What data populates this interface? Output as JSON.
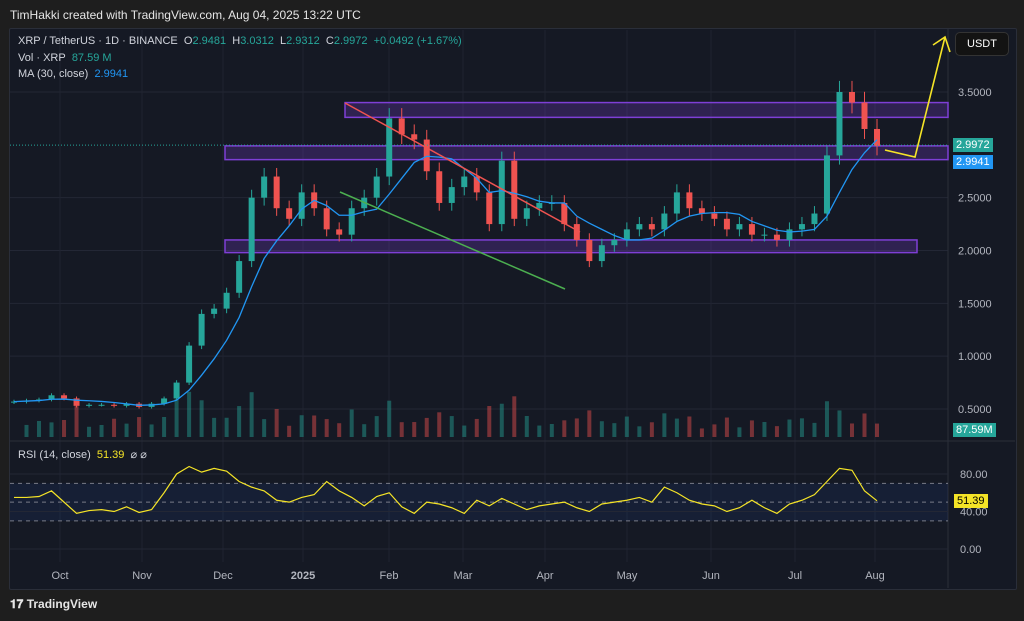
{
  "credit": "TimHakki created with TradingView.com, Aug 04, 2025 13:22 UTC",
  "legend": {
    "symbol": "XRP / TetherUS · 1D · BINANCE",
    "o_label": "O",
    "o": "2.9481",
    "h_label": "H",
    "h": "3.0312",
    "l_label": "L",
    "l": "2.9312",
    "c_label": "C",
    "c": "2.9972",
    "change": "+0.0492 (+1.67%)",
    "vol_label": "Vol · XRP",
    "vol": "87.59 M",
    "ma_label": "MA (30, close)",
    "ma": "2.9941",
    "rsi_label": "RSI (14, close)",
    "rsi": "51.39",
    "rsi_extra": "⌀ ⌀"
  },
  "currency": "USDT",
  "price_tags": {
    "close": "2.9972",
    "ma": "2.9941",
    "volume": "87.59M",
    "rsi": "51.39"
  },
  "footer": "TradingView",
  "colors": {
    "up": "#26a69a",
    "down": "#ef5350",
    "ma": "#2196f3",
    "rsi": "#f5e427",
    "box": "#7e3fd6",
    "resistance": "#ef5350",
    "support": "#4caf50",
    "arrow": "#f5e427"
  },
  "chart_data": {
    "type": "candlestick",
    "title": "XRP / TetherUS · 1D · BINANCE",
    "x_ticks": [
      "Oct",
      "Nov",
      "Dec",
      "2025",
      "Feb",
      "Mar",
      "Apr",
      "May",
      "Jun",
      "Jul",
      "Aug"
    ],
    "y_ticks": [
      "3.5000",
      "2.5000",
      "2.0000",
      "1.5000",
      "1.0000",
      "0.5000"
    ],
    "ylim": [
      0.42,
      3.95
    ],
    "rsi_ticks": [
      "80.00",
      "40.00",
      "0.00"
    ],
    "rsi_bands": [
      70,
      30
    ],
    "step_days": 5,
    "closes": [
      0.57,
      0.58,
      0.59,
      0.63,
      0.6,
      0.53,
      0.54,
      0.54,
      0.53,
      0.55,
      0.52,
      0.55,
      0.6,
      0.75,
      1.1,
      1.4,
      1.45,
      1.6,
      1.9,
      2.5,
      2.7,
      2.4,
      2.3,
      2.55,
      2.4,
      2.2,
      2.15,
      2.4,
      2.5,
      2.7,
      3.25,
      3.1,
      3.05,
      2.75,
      2.45,
      2.6,
      2.7,
      2.55,
      2.25,
      2.85,
      2.3,
      2.4,
      2.45,
      2.45,
      2.25,
      2.1,
      1.9,
      2.05,
      2.1,
      2.2,
      2.25,
      2.2,
      2.35,
      2.55,
      2.4,
      2.35,
      2.3,
      2.2,
      2.25,
      2.15,
      2.15,
      2.1,
      2.2,
      2.25,
      2.35,
      2.9,
      3.5,
      3.4,
      3.15,
      2.99
    ],
    "rsi": [
      55,
      55,
      56,
      62,
      50,
      38,
      41,
      42,
      40,
      45,
      39,
      42,
      60,
      80,
      88,
      82,
      86,
      83,
      72,
      66,
      62,
      52,
      50,
      55,
      58,
      72,
      62,
      55,
      46,
      56,
      60,
      45,
      38,
      50,
      48,
      44,
      38,
      52,
      46,
      54,
      48,
      42,
      46,
      48,
      50,
      44,
      40,
      48,
      50,
      52,
      55,
      50,
      66,
      60,
      52,
      48,
      46,
      40,
      44,
      52,
      44,
      38,
      48,
      52,
      58,
      72,
      86,
      84,
      62,
      51.39
    ],
    "zones": [
      [
        3.26,
        3.4
      ],
      [
        2.86,
        2.99
      ],
      [
        1.98,
        2.1
      ]
    ],
    "resistance_line": [
      [
        3.4,
        "Jan 16"
      ],
      [
        2.18,
        "Apr 20"
      ]
    ],
    "support_line": [
      [
        2.55,
        "Jan 14"
      ],
      [
        1.64,
        "Apr 7"
      ]
    ],
    "projection": [
      "2.86",
      "3.95"
    ]
  }
}
